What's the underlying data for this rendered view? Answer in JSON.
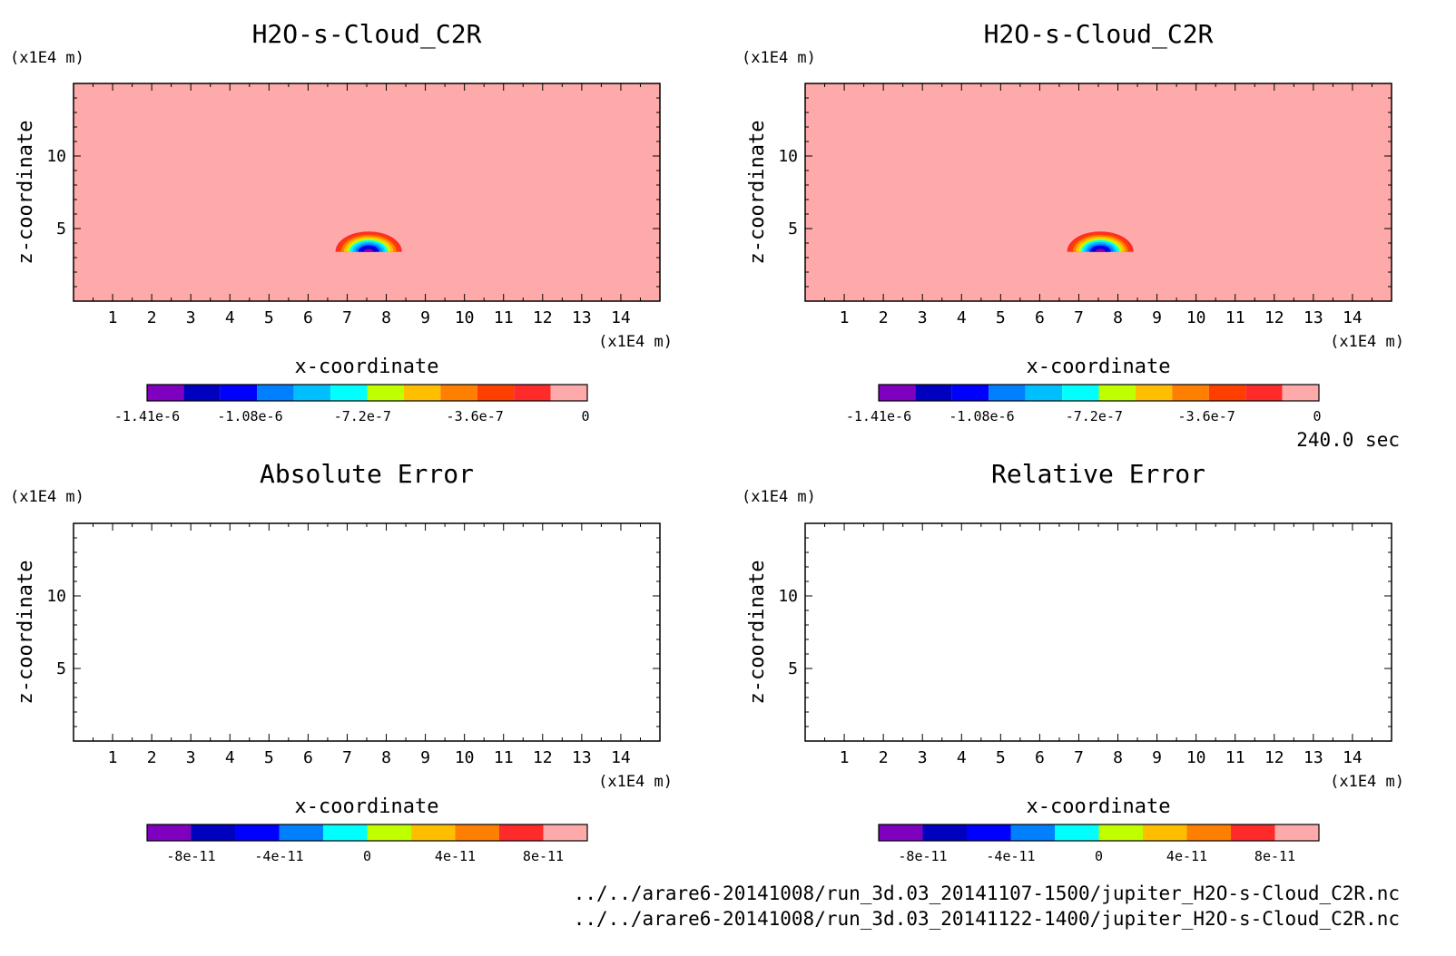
{
  "time_label": "240.0 sec",
  "files": [
    "../../arare6-20141008/run_3d.03_20141107-1500/jupiter_H2O-s-Cloud_C2R.nc",
    "../../arare6-20141008/run_3d.03_20141122-1400/jupiter_H2O-s-Cloud_C2R.nc"
  ],
  "colors": {
    "background_field": "#ffaaaa",
    "palette": [
      "#7f00bf",
      "#0000bf",
      "#0000ff",
      "#007fff",
      "#00bfff",
      "#00ffff",
      "#bfff00",
      "#ffbf00",
      "#ff7f00",
      "#ff3f00",
      "#ff2a2a",
      "#ffaaaa"
    ]
  },
  "chart_data": [
    {
      "type": "heatmap",
      "title": "H2O-s-Cloud_C2R",
      "xlabel": "x-coordinate",
      "ylabel": "z-coordinate",
      "x_unit": "(x1E4 m)",
      "y_unit": "(x1E4 m)",
      "xlim": [
        0,
        15
      ],
      "ylim": [
        0,
        15
      ],
      "x_ticks": [
        "1",
        "2",
        "3",
        "4",
        "5",
        "6",
        "7",
        "8",
        "9",
        "10",
        "11",
        "12",
        "13",
        "14"
      ],
      "y_ticks": [
        "5",
        "10"
      ],
      "field": "cloud",
      "colorbar": {
        "range": [
          -1.41e-06,
          0
        ],
        "levels": 12,
        "tick_labels": [
          "-1.41e-6",
          "-1.08e-6",
          "-7.2e-7",
          "-3.6e-7",
          "0"
        ]
      },
      "feature": {
        "shape": "semi-elliptical cloud anomaly",
        "center_x": 7.55,
        "base_z": 3.4,
        "half_width": 0.85,
        "height": 1.4,
        "min_value": -1.41e-06
      }
    },
    {
      "type": "heatmap",
      "title": "H2O-s-Cloud_C2R",
      "xlabel": "x-coordinate",
      "ylabel": "z-coordinate",
      "x_unit": "(x1E4 m)",
      "y_unit": "(x1E4 m)",
      "xlim": [
        0,
        15
      ],
      "ylim": [
        0,
        15
      ],
      "x_ticks": [
        "1",
        "2",
        "3",
        "4",
        "5",
        "6",
        "7",
        "8",
        "9",
        "10",
        "11",
        "12",
        "13",
        "14"
      ],
      "y_ticks": [
        "5",
        "10"
      ],
      "field": "cloud",
      "colorbar": {
        "range": [
          -1.41e-06,
          0
        ],
        "levels": 12,
        "tick_labels": [
          "-1.41e-6",
          "-1.08e-6",
          "-7.2e-7",
          "-3.6e-7",
          "0"
        ]
      },
      "feature": {
        "shape": "semi-elliptical cloud anomaly",
        "center_x": 7.55,
        "base_z": 3.4,
        "half_width": 0.85,
        "height": 1.4,
        "min_value": -1.41e-06
      }
    },
    {
      "type": "heatmap",
      "title": "Absolute Error",
      "xlabel": "x-coordinate",
      "ylabel": "z-coordinate",
      "x_unit": "(x1E4 m)",
      "y_unit": "(x1E4 m)",
      "xlim": [
        0,
        15
      ],
      "ylim": [
        0,
        15
      ],
      "x_ticks": [
        "1",
        "2",
        "3",
        "4",
        "5",
        "6",
        "7",
        "8",
        "9",
        "10",
        "11",
        "12",
        "13",
        "14"
      ],
      "y_ticks": [
        "5",
        "10"
      ],
      "field": "empty",
      "colorbar": {
        "range": [
          -1e-10,
          1e-10
        ],
        "levels": 10,
        "tick_labels": [
          "-8e-11",
          "-4e-11",
          "0",
          "4e-11",
          "8e-11"
        ]
      }
    },
    {
      "type": "heatmap",
      "title": "Relative Error",
      "xlabel": "x-coordinate",
      "ylabel": "z-coordinate",
      "x_unit": "(x1E4 m)",
      "y_unit": "(x1E4 m)",
      "xlim": [
        0,
        15
      ],
      "ylim": [
        0,
        15
      ],
      "x_ticks": [
        "1",
        "2",
        "3",
        "4",
        "5",
        "6",
        "7",
        "8",
        "9",
        "10",
        "11",
        "12",
        "13",
        "14"
      ],
      "y_ticks": [
        "5",
        "10"
      ],
      "field": "empty",
      "colorbar": {
        "range": [
          -1e-10,
          1e-10
        ],
        "levels": 10,
        "tick_labels": [
          "-8e-11",
          "-4e-11",
          "0",
          "4e-11",
          "8e-11"
        ]
      }
    }
  ]
}
